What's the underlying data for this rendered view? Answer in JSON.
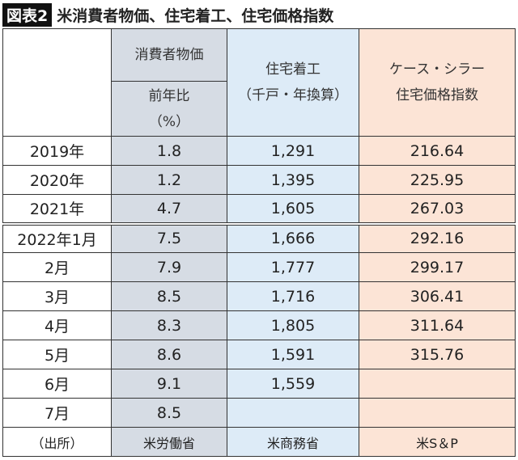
{
  "header": {
    "label": "図表2",
    "title": "米消費者物価、住宅着工、住宅価格指数"
  },
  "table": {
    "header": {
      "cpi": "消費者物価",
      "cpi_unit": [
        "前年比",
        "（%）"
      ],
      "housing_starts": [
        "住宅着工",
        "（千戸・年換算）"
      ],
      "case_shiller": [
        "ケース・シラー",
        "住宅価格指数"
      ]
    },
    "rows": [
      [
        "2019年",
        "1.8",
        "1,291",
        "216.64"
      ],
      [
        "2020年",
        "1.2",
        "1,395",
        "225.95"
      ],
      [
        "2021年",
        "4.7",
        "1,605",
        "267.03"
      ],
      [
        "2022年1月",
        "7.5",
        "1,666",
        "292.16"
      ],
      [
        "2月",
        "7.9",
        "1,777",
        "299.17"
      ],
      [
        "3月",
        "8.5",
        "1,716",
        "306.41"
      ],
      [
        "4月",
        "8.3",
        "1,805",
        "311.64"
      ],
      [
        "5月",
        "8.6",
        "1,591",
        "315.76"
      ],
      [
        "6月",
        "9.1",
        "1,559"
      ],
      [
        "7月",
        "8.5"
      ]
    ],
    "source": [
      "（出所）",
      "米労働省",
      "米商務省",
      "米S＆P"
    ]
  }
}
